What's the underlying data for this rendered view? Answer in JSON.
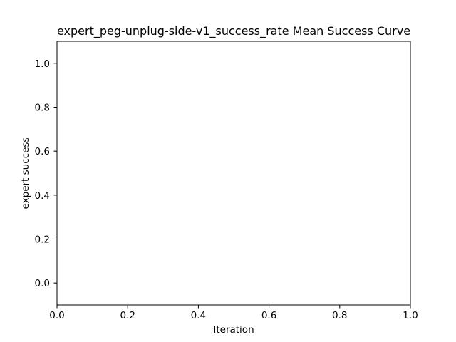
{
  "chart_data": {
    "type": "line",
    "title": "expert_peg-unplug-side-v1_success_rate Mean Success Curve",
    "xlabel": "Iteration",
    "ylabel": "expert success",
    "xlim": [
      0.0,
      1.0
    ],
    "ylim": [
      -0.1,
      1.1
    ],
    "xticks": [
      0.0,
      0.2,
      0.4,
      0.6,
      0.8,
      1.0
    ],
    "xtick_labels": [
      "0.0",
      "0.2",
      "0.4",
      "0.6",
      "0.8",
      "1.0"
    ],
    "yticks": [
      0.0,
      0.2,
      0.4,
      0.6,
      0.8,
      1.0
    ],
    "ytick_labels": [
      "0.0",
      "0.2",
      "0.4",
      "0.6",
      "0.8",
      "1.0"
    ],
    "grid": false,
    "series": []
  }
}
